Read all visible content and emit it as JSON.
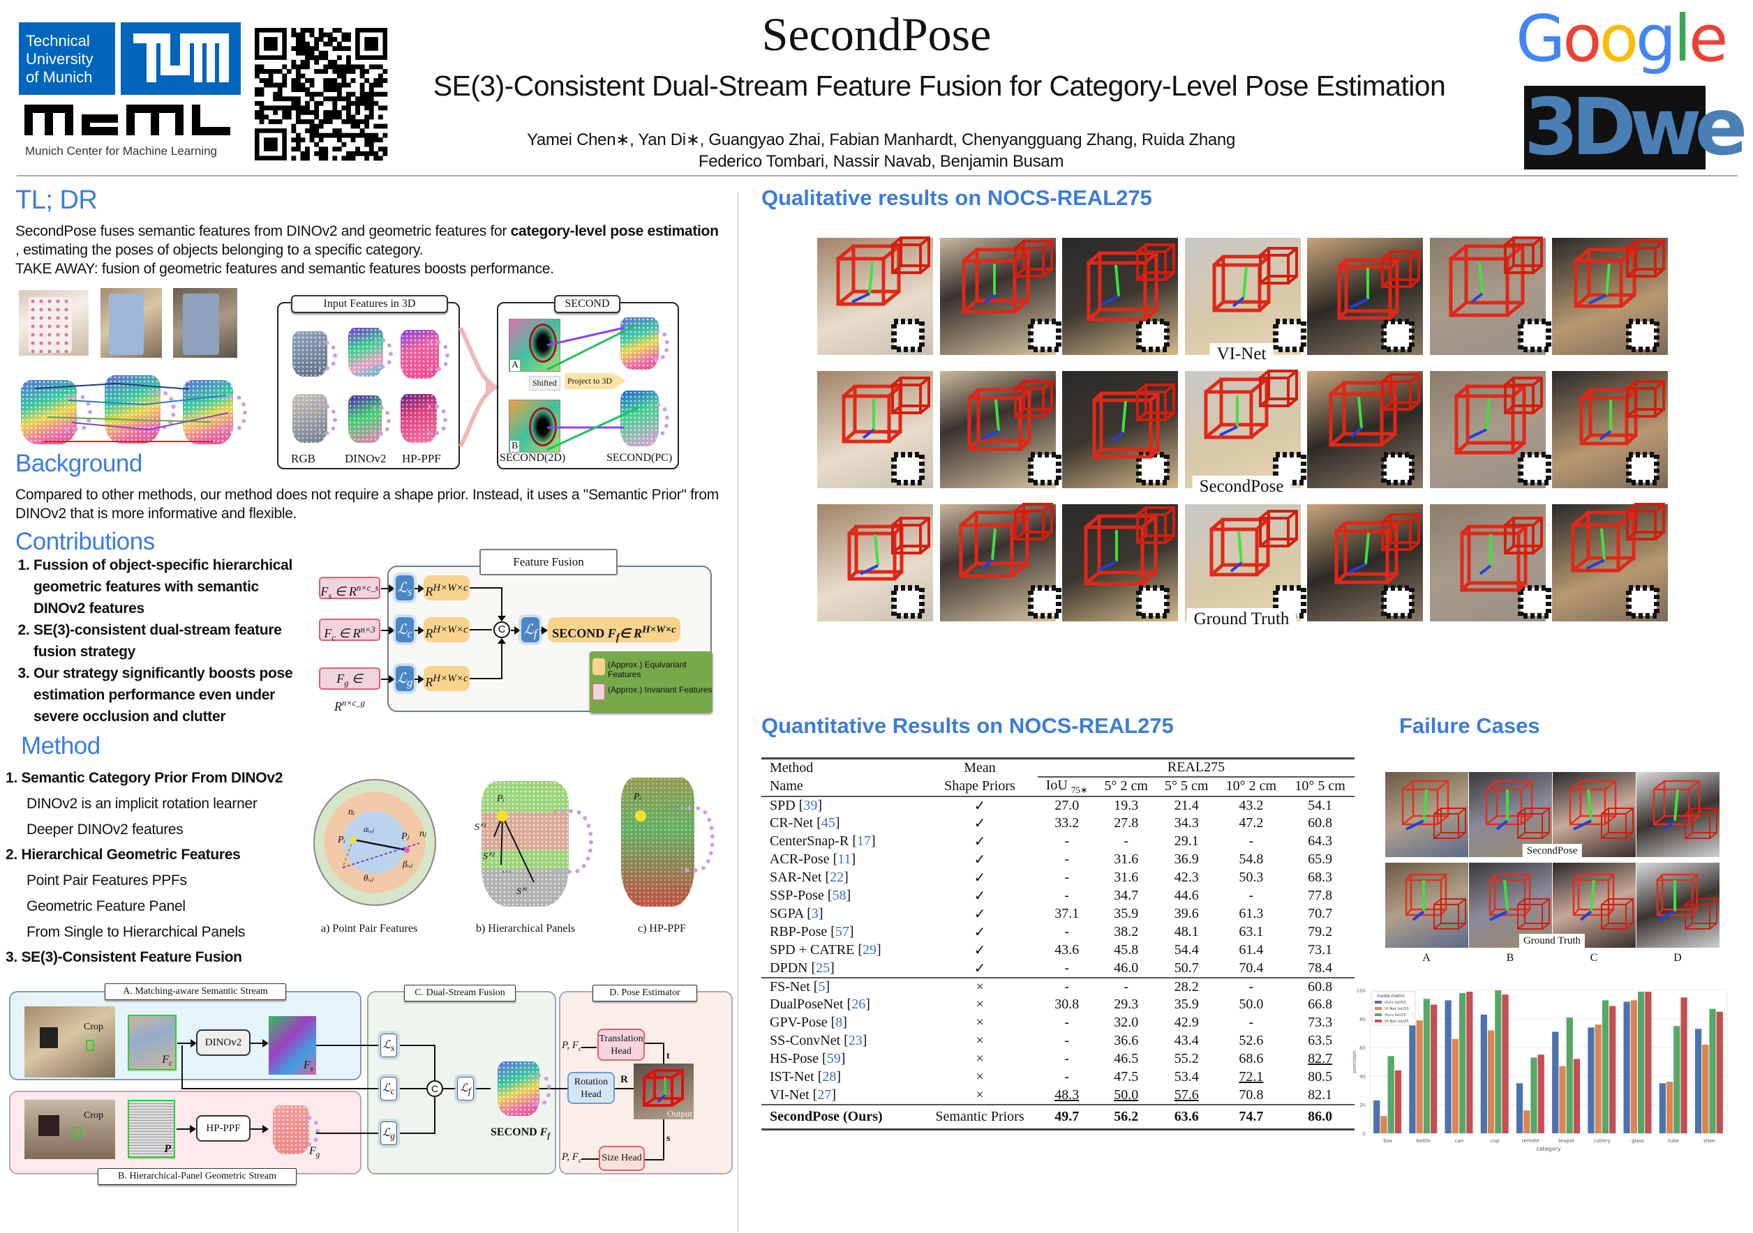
{
  "colors": {
    "accent": "#3b7dd8",
    "tum_blue": "#0065bd",
    "google": [
      "#4285f4",
      "#ea4335",
      "#fbbc05",
      "#4285f4",
      "#34a853",
      "#ea4335"
    ],
    "threedwe_bg": "#111111",
    "threedwe_fg": "#4a7fb5"
  },
  "header": {
    "title": "SecondPose",
    "subtitle": "SE(3)-Consistent Dual-Stream Feature Fusion for Category-Level Pose Estimation",
    "authors_line1": "Yamei Chen∗, Yan Di∗, Guangyao Zhai, Fabian Manhardt, Chenyangguang Zhang, Ruida Zhang",
    "authors_line2": "Federico Tombari, Nassir Navab, Benjamin Busam",
    "logos": {
      "tum_text_1": "Technical",
      "tum_text_2": "University",
      "tum_text_3": "of Munich",
      "mcml_text": "Munich Center for Machine Learning",
      "google": "Google",
      "threedwe": "3Dwe"
    }
  },
  "tldr": {
    "heading": "TL; DR",
    "p1_a": "SecondPose fuses semantic features from DINOv2 and geometric features for ",
    "p1_b": "category-level pose estimation",
    "p1_c": " , estimating the poses of objects belonging to a specific category.",
    "p2_a": "TAKE AWAY:",
    "p2_b": "  fusion of geometric features and semantic features boosts performance.",
    "fig": {
      "input_title": "Input Features in 3D",
      "rgb": "RGB",
      "dinov2": "DINOv2",
      "hpppf": "HP-PPF",
      "second_title": "SECOND",
      "a": "A",
      "b": "B",
      "shifted": "Shifted",
      "project": "Project to 3D",
      "second2d": "SECOND(2D)",
      "secondpc": "SECOND(PC)"
    }
  },
  "background": {
    "heading": "Background",
    "text": "Compared to other methods, our method  does not require a shape prior. Instead, it uses a \"Semantic Prior\" from DINOv2 that is more informative and flexible."
  },
  "contributions": {
    "heading": "Contributions",
    "items": [
      "Fussion of  object-specific hierarchical geometric features with semantic DINOv2 features",
      "SE(3)-consistent dual-stream feature fusion strategy",
      "Our strategy significantly boosts pose estimation performance even under severe occlusion and clutter"
    ],
    "fig": {
      "title": "Feature Fusion",
      "fs": {
        "base": "F",
        "sub": "s",
        "mid": " ∈ R",
        "sup": "n×c_s"
      },
      "fc": {
        "base": "F",
        "sub": "c",
        "mid": " ∈ R",
        "sup": "n×3"
      },
      "fg": {
        "base": "F",
        "sub": "g",
        "mid": " ∈ R",
        "sup": "n×c_g"
      },
      "ls": {
        "base": "ℒ",
        "sub": "s"
      },
      "lc": {
        "base": "ℒ",
        "sub": "c"
      },
      "lg": {
        "base": "ℒ",
        "sub": "g"
      },
      "lf": {
        "base": "ℒ",
        "sub": "f"
      },
      "r": {
        "base": "R",
        "sup": "H×W×c"
      },
      "concat": "C",
      "second": {
        "label": "SECOND ",
        "base": "F",
        "sub": "f",
        "mid": "∈ R",
        "sup": "H×W×c"
      },
      "legend_equi": "(Approx.) Equivariant Features",
      "legend_inv": "(Approx.) Invariant Features"
    }
  },
  "method": {
    "heading": "Method",
    "items": [
      {
        "num": "1.",
        "title": "Semantic Category Prior From DINOv2",
        "subs": [
          "DINOv2 is an implicit rotation learner",
          "Deeper DINOv2 features"
        ]
      },
      {
        "num": "2.",
        "title": "Hierarchical Geometric Features",
        "subs": [
          "Point Pair Features PPFs",
          "Geometric Feature Panel",
          "From Single to Hierarchical Panels"
        ]
      },
      {
        "num": "3.",
        "title": "SE(3)-Consistent Feature Fusion",
        "subs": []
      }
    ],
    "fig": {
      "cap_a": "a) Point Pair Features",
      "cap_b": "b) Hierarchical Panels",
      "cap_c": "c) HP-PPF",
      "ni": "nᵢ",
      "pi": "Pᵢ",
      "pj": "Pⱼ",
      "nj": "nⱼ",
      "alpha": "αᵢ,ⱼ",
      "beta": "βᵢ,ⱼ",
      "theta": "θᵢ,ⱼ",
      "s1": "Sⁱ'¹",
      "s2": "Sⁱ'²",
      "sl": "Sⁱ'ˡ",
      "dots": "…"
    },
    "pipeline": {
      "a_title": "A. Matching-aware Semantic Stream",
      "b_title": "B. Hierarchical-Panel Geometric Stream",
      "c_title": "C. Dual-Stream Fusion",
      "d_title": "D. Pose Estimator",
      "crop": "Crop",
      "dinov2": "DINOv2",
      "hpppf": "HP-PPF",
      "fc": {
        "base": "F",
        "sub": "c"
      },
      "fs": {
        "base": "F",
        "sub": "s"
      },
      "fg": {
        "base": "F",
        "sub": "g"
      },
      "p": "P",
      "ls": "s",
      "lc": "c",
      "lg": "g",
      "lf": "f",
      "l_sym": "ℒ",
      "concat": "C",
      "second": "SECOND ",
      "ff": {
        "base": "F",
        "sub": "f"
      },
      "pfc": "P, F",
      "pfc_sub": "c",
      "trans": "Translation Head",
      "rot": "Rotation Head",
      "size": "Size Head",
      "t": "t",
      "r": "R",
      "s": "s",
      "output": "Output"
    }
  },
  "qualitative": {
    "heading": "Qualitative results on NOCS-REAL275",
    "rows": [
      "VI-Net",
      "SecondPose",
      "Ground Truth"
    ],
    "columns": 7
  },
  "quantitative": {
    "heading": "Quantitative Results on NOCS-REAL275",
    "head": {
      "method_1": "Method",
      "method_2": "Name",
      "prior_1": "Mean",
      "prior_2": "Shape Priors",
      "group": "REAL275",
      "cols": [
        "IoU ",
        "5° 2 cm",
        "5° 5 cm",
        "10° 2 cm",
        "10° 5 cm"
      ],
      "iou_sub": "75∗"
    },
    "check": "✓",
    "cross": "×",
    "group1": [
      {
        "name": "SPD",
        "ref": "39",
        "vals": [
          "27.0",
          "19.3",
          "21.4",
          "43.2",
          "54.1"
        ]
      },
      {
        "name": "CR-Net",
        "ref": "45",
        "vals": [
          "33.2",
          "27.8",
          "34.3",
          "47.2",
          "60.8"
        ]
      },
      {
        "name": "CenterSnap-R",
        "ref": "17",
        "vals": [
          "-",
          "-",
          "29.1",
          "-",
          "64.3"
        ]
      },
      {
        "name": "ACR-Pose",
        "ref": "11",
        "vals": [
          "-",
          "31.6",
          "36.9",
          "54.8",
          "65.9"
        ]
      },
      {
        "name": "SAR-Net",
        "ref": "22",
        "vals": [
          "-",
          "31.6",
          "42.3",
          "50.3",
          "68.3"
        ]
      },
      {
        "name": "SSP-Pose",
        "ref": "58",
        "vals": [
          "-",
          "34.7",
          "44.6",
          "-",
          "77.8"
        ]
      },
      {
        "name": "SGPA",
        "ref": "3",
        "vals": [
          "37.1",
          "35.9",
          "39.6",
          "61.3",
          "70.7"
        ]
      },
      {
        "name": "RBP-Pose",
        "ref": "57",
        "vals": [
          "-",
          "38.2",
          "48.1",
          "63.1",
          "79.2"
        ]
      },
      {
        "name": "SPD + CATRE",
        "ref": "29",
        "vals": [
          "43.6",
          "45.8",
          "54.4",
          "61.4",
          "73.1"
        ]
      },
      {
        "name": "DPDN",
        "ref": "25",
        "vals": [
          "-",
          "46.0",
          "50.7",
          "70.4",
          "78.4"
        ]
      }
    ],
    "group2": [
      {
        "name": "FS-Net",
        "ref": "5",
        "vals": [
          "-",
          "-",
          "28.2",
          "-",
          "60.8"
        ]
      },
      {
        "name": "DualPoseNet",
        "ref": "26",
        "vals": [
          "30.8",
          "29.3",
          "35.9",
          "50.0",
          "66.8"
        ]
      },
      {
        "name": "GPV-Pose",
        "ref": "8",
        "vals": [
          "-",
          "32.0",
          "42.9",
          "-",
          "73.3"
        ]
      },
      {
        "name": "SS-ConvNet",
        "ref": "23",
        "vals": [
          "-",
          "36.6",
          "43.4",
          "52.6",
          "63.5"
        ]
      },
      {
        "name": "HS-Pose",
        "ref": "59",
        "vals": [
          "-",
          "46.5",
          "55.2",
          "68.6",
          "82.7"
        ],
        "underline": [
          4
        ]
      },
      {
        "name": "IST-Net",
        "ref": "28",
        "vals": [
          "-",
          "47.5",
          "53.4",
          "72.1",
          "80.5"
        ],
        "underline": [
          3
        ]
      },
      {
        "name": "VI-Net",
        "ref": "27",
        "vals": [
          "48.3",
          "50.0",
          "57.6",
          "70.8",
          "82.1"
        ],
        "underline": [
          0,
          1,
          2
        ]
      }
    ],
    "ours": {
      "name": "SecondPose (Ours)",
      "prior": "Semantic Priors",
      "vals": [
        "49.7",
        "56.2",
        "63.6",
        "74.7",
        "86.0"
      ]
    }
  },
  "failure": {
    "heading": "Failure Cases",
    "row_labels": [
      "SecondPose",
      "Ground Truth"
    ],
    "cols": [
      "A",
      "B",
      "C",
      "D"
    ]
  },
  "chart_data": {
    "type": "bar",
    "legend_title": "model-metric",
    "legend_position": "top-left",
    "xlabel": "category",
    "ylabel": "precision",
    "ylim": [
      0,
      100
    ],
    "yticks": [
      0,
      20,
      40,
      60,
      80,
      100
    ],
    "grid": true,
    "categories": [
      "box",
      "bottle",
      "can",
      "cup",
      "remote",
      "teapot",
      "cutlery",
      "glass",
      "tube",
      "shoe"
    ],
    "series": [
      {
        "name": "Ours IoU50",
        "color": "#4c72b0",
        "values": [
          23,
          78,
          93,
          83,
          35,
          71,
          74,
          92,
          35,
          73
        ]
      },
      {
        "name": "VI-Net IoU50",
        "color": "#dd8452",
        "values": [
          12,
          79,
          66,
          72,
          16,
          47,
          76,
          93,
          36,
          62
        ]
      },
      {
        "name": "Ours IoU25",
        "color": "#55a868",
        "values": [
          54,
          94,
          98,
          100,
          53,
          81,
          93,
          99,
          75,
          87
        ]
      },
      {
        "name": "VI-Net IoU25",
        "color": "#c44e52",
        "values": [
          44,
          90,
          99,
          97,
          55,
          52,
          89,
          99,
          95,
          85
        ]
      }
    ]
  }
}
